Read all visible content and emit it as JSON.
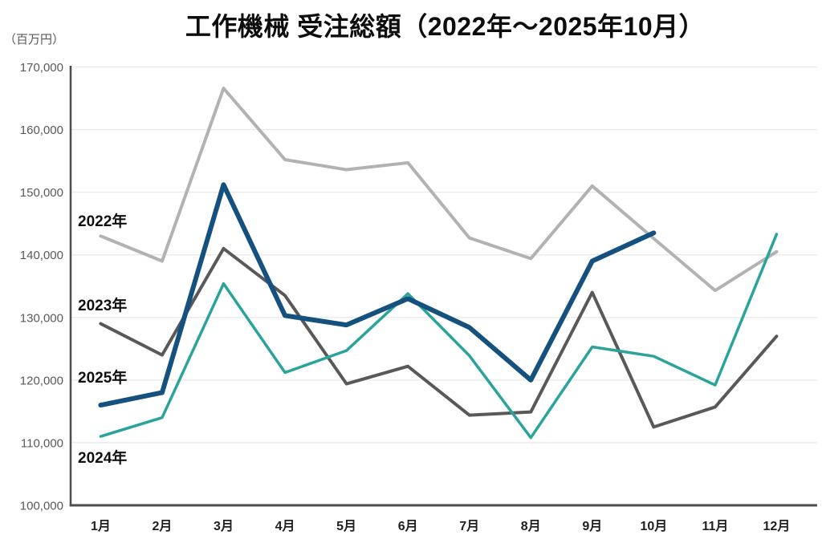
{
  "chart_data": {
    "type": "line",
    "title": "工作機械 受注総額（2022年～2025年10月）",
    "unit_label": "（百万円）",
    "xlabel": "",
    "ylabel": "百万円",
    "categories": [
      "1月",
      "2月",
      "3月",
      "4月",
      "5月",
      "6月",
      "7月",
      "8月",
      "9月",
      "10月",
      "11月",
      "12月"
    ],
    "ylim": [
      100000,
      170000
    ],
    "ytick_step": 10000,
    "grid": true,
    "legend_position": "inline-left-of-lines",
    "series": [
      {
        "name": "2022年",
        "color": "#b2b2b2",
        "line_width": 4,
        "values": [
          143000,
          139000,
          166600,
          155200,
          153600,
          154700,
          142700,
          139400,
          151000,
          142600,
          134300,
          140500
        ]
      },
      {
        "name": "2023年",
        "color": "#595959",
        "line_width": 4,
        "values": [
          129000,
          124000,
          141000,
          133500,
          119400,
          122200,
          114400,
          114900,
          134000,
          112500,
          115700,
          127000
        ]
      },
      {
        "name": "2024年",
        "color": "#2aa49a",
        "line_width": 3.5,
        "values": [
          111000,
          114000,
          135400,
          121200,
          124700,
          133800,
          123900,
          110800,
          125300,
          123800,
          119200,
          143300
        ]
      },
      {
        "name": "2025年",
        "color": "#15517f",
        "line_width": 6,
        "values": [
          116000,
          118000,
          151200,
          130300,
          128800,
          133000,
          128400,
          120000,
          139000,
          143500
        ]
      }
    ],
    "axis_color": "#4d4d4d",
    "grid_color": "#e9e9e9"
  }
}
